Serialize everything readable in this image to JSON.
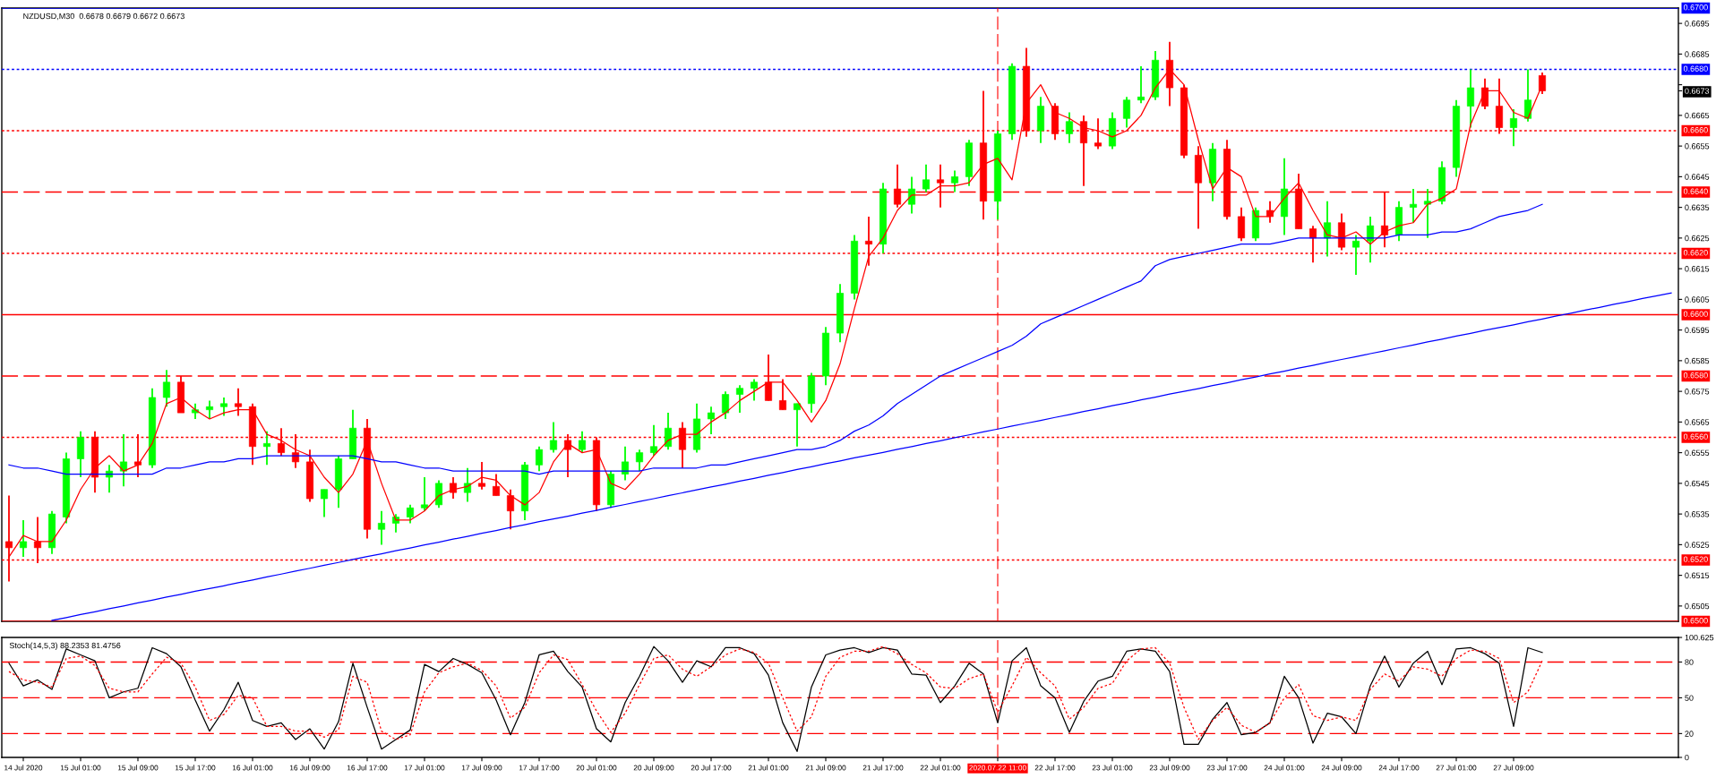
{
  "chart_data": [
    {
      "type": "candlestick",
      "title": "NZDUSD,M30  0.6678 0.6679 0.6672 0.6673",
      "categories": [
        null,
        "14 Jul 2020",
        null,
        null,
        null,
        "15 Jul 01:00",
        null,
        null,
        null,
        "15 Jul 09:00",
        null,
        null,
        null,
        "15 Jul 17:00",
        null,
        null,
        null,
        "16 Jul 01:00",
        null,
        null,
        null,
        "16 Jul 09:00",
        null,
        null,
        null,
        "16 Jul 17:00",
        null,
        null,
        null,
        "17 Jul 01:00",
        null,
        null,
        null,
        "17 Jul 09:00",
        null,
        null,
        null,
        "17 Jul 17:00",
        null,
        null,
        null,
        "20 Jul 01:00",
        null,
        null,
        null,
        "20 Jul 09:00",
        null,
        null,
        null,
        "20 Jul 17:00",
        null,
        null,
        null,
        "21 Jul 01:00",
        null,
        null,
        null,
        "21 Jul 09:00",
        null,
        null,
        null,
        "21 Jul 17:00",
        null,
        null,
        null,
        "22 Jul 01:00",
        null,
        null,
        null,
        "2020.07.22 11:00",
        null,
        null,
        null,
        "22 Jul 17:00",
        null,
        null,
        null,
        "23 Jul 01:00",
        null,
        null,
        null,
        "23 Jul 09:00",
        null,
        null,
        null,
        "23 Jul 17:00",
        null,
        null,
        null,
        "24 Jul 01:00",
        null,
        null,
        null,
        "24 Jul 09:00",
        null,
        null,
        null,
        "24 Jul 17:00",
        null,
        null,
        null,
        "27 Jul 01:00",
        null,
        null,
        null,
        "27 Jul 09:00",
        null,
        null,
        null,
        null,
        null,
        null,
        null,
        null,
        null,
        null,
        null
      ],
      "ohlc": [
        [
          0.6526,
          0.6541,
          0.6513,
          0.6524
        ],
        [
          0.6524,
          0.6533,
          0.6521,
          0.6526
        ],
        [
          0.6526,
          0.6534,
          0.6519,
          0.6524
        ],
        [
          0.6524,
          0.6536,
          0.6522,
          0.6535
        ],
        [
          0.6534,
          0.6555,
          0.6532,
          0.6553
        ],
        [
          0.6553,
          0.6562,
          0.6547,
          0.656
        ],
        [
          0.656,
          0.6562,
          0.6542,
          0.6547
        ],
        [
          0.6547,
          0.6551,
          0.6542,
          0.6549
        ],
        [
          0.6549,
          0.6561,
          0.6544,
          0.6552
        ],
        [
          0.6552,
          0.6561,
          0.6547,
          0.6551
        ],
        [
          0.6551,
          0.6576,
          0.655,
          0.6573
        ],
        [
          0.6573,
          0.6582,
          0.657,
          0.6578
        ],
        [
          0.6578,
          0.658,
          0.6568,
          0.6568
        ],
        [
          0.6568,
          0.6571,
          0.6566,
          0.6569
        ],
        [
          0.6569,
          0.6572,
          0.6566,
          0.657
        ],
        [
          0.657,
          0.6573,
          0.6567,
          0.6571
        ],
        [
          0.6571,
          0.6576,
          0.6567,
          0.657
        ],
        [
          0.657,
          0.6571,
          0.6551,
          0.6557
        ],
        [
          0.6557,
          0.6562,
          0.6551,
          0.6558
        ],
        [
          0.6558,
          0.6563,
          0.6554,
          0.6555
        ],
        [
          0.6555,
          0.6561,
          0.655,
          0.6552
        ],
        [
          0.6552,
          0.6556,
          0.6539,
          0.654
        ],
        [
          0.654,
          0.6543,
          0.6534,
          0.6543
        ],
        [
          0.6543,
          0.6554,
          0.6537,
          0.6553
        ],
        [
          0.6553,
          0.6569,
          0.6553,
          0.6563
        ],
        [
          0.6563,
          0.6566,
          0.6527,
          0.653
        ],
        [
          0.653,
          0.6536,
          0.6525,
          0.6532
        ],
        [
          0.6532,
          0.6535,
          0.6529,
          0.6534
        ],
        [
          0.6534,
          0.6538,
          0.6532,
          0.6537
        ],
        [
          0.6537,
          0.6547,
          0.6536,
          0.6538
        ],
        [
          0.6538,
          0.6546,
          0.6537,
          0.6545
        ],
        [
          0.6545,
          0.6547,
          0.654,
          0.6542
        ],
        [
          0.6542,
          0.655,
          0.6539,
          0.6545
        ],
        [
          0.6545,
          0.6552,
          0.6543,
          0.6544
        ],
        [
          0.6544,
          0.6548,
          0.6541,
          0.6541
        ],
        [
          0.6541,
          0.6543,
          0.653,
          0.6536
        ],
        [
          0.6536,
          0.6552,
          0.6533,
          0.6551
        ],
        [
          0.6551,
          0.6557,
          0.6549,
          0.6556
        ],
        [
          0.6556,
          0.6565,
          0.6555,
          0.6559
        ],
        [
          0.6559,
          0.6561,
          0.6547,
          0.6556
        ],
        [
          0.6556,
          0.6562,
          0.6555,
          0.6559
        ],
        [
          0.6559,
          0.656,
          0.6536,
          0.6538
        ],
        [
          0.6538,
          0.6549,
          0.6537,
          0.6548
        ],
        [
          0.6548,
          0.6557,
          0.6546,
          0.6552
        ],
        [
          0.6552,
          0.6556,
          0.6549,
          0.6555
        ],
        [
          0.6555,
          0.6564,
          0.6554,
          0.6557
        ],
        [
          0.6557,
          0.6568,
          0.6556,
          0.6563
        ],
        [
          0.6563,
          0.6565,
          0.655,
          0.6556
        ],
        [
          0.6556,
          0.6571,
          0.6555,
          0.6566
        ],
        [
          0.6566,
          0.657,
          0.6561,
          0.6568
        ],
        [
          0.6568,
          0.6575,
          0.6566,
          0.6574
        ],
        [
          0.6574,
          0.6577,
          0.6568,
          0.6576
        ],
        [
          0.6576,
          0.6579,
          0.6572,
          0.6578
        ],
        [
          0.6578,
          0.6587,
          0.6572,
          0.6572
        ],
        [
          0.6572,
          0.6579,
          0.6569,
          0.6569
        ],
        [
          0.6569,
          0.6571,
          0.6557,
          0.6571
        ],
        [
          0.6571,
          0.6581,
          0.6568,
          0.658
        ],
        [
          0.658,
          0.6596,
          0.6577,
          0.6594
        ],
        [
          0.6594,
          0.661,
          0.6591,
          0.6607
        ],
        [
          0.6607,
          0.6626,
          0.6605,
          0.6624
        ],
        [
          0.6624,
          0.6632,
          0.6616,
          0.6623
        ],
        [
          0.6623,
          0.6643,
          0.662,
          0.6641
        ],
        [
          0.6641,
          0.6649,
          0.6635,
          0.6636
        ],
        [
          0.6636,
          0.6645,
          0.6633,
          0.6641
        ],
        [
          0.6641,
          0.6649,
          0.664,
          0.6644
        ],
        [
          0.6644,
          0.6649,
          0.6635,
          0.6643
        ],
        [
          0.6643,
          0.6647,
          0.664,
          0.6645
        ],
        [
          0.6645,
          0.6657,
          0.6642,
          0.6656
        ],
        [
          0.6656,
          0.6673,
          0.6631,
          0.6637
        ],
        [
          0.6637,
          0.666,
          0.6631,
          0.6659
        ],
        [
          0.6659,
          0.6682,
          0.6657,
          0.6681
        ],
        [
          0.6681,
          0.6687,
          0.6658,
          0.666
        ],
        [
          0.666,
          0.6671,
          0.6656,
          0.6668
        ],
        [
          0.6668,
          0.6669,
          0.6657,
          0.6659
        ],
        [
          0.6659,
          0.6666,
          0.6656,
          0.6663
        ],
        [
          0.6663,
          0.6665,
          0.6642,
          0.6656
        ],
        [
          0.6656,
          0.6664,
          0.6654,
          0.6655
        ],
        [
          0.6655,
          0.6666,
          0.6654,
          0.6664
        ],
        [
          0.6664,
          0.6671,
          0.6661,
          0.667
        ],
        [
          0.667,
          0.6681,
          0.6669,
          0.6671
        ],
        [
          0.6671,
          0.6686,
          0.667,
          0.6683
        ],
        [
          0.6683,
          0.6689,
          0.6668,
          0.6674
        ],
        [
          0.6674,
          0.6675,
          0.6651,
          0.6652
        ],
        [
          0.6652,
          0.6655,
          0.6628,
          0.6643
        ],
        [
          0.6643,
          0.6656,
          0.6637,
          0.6654
        ],
        [
          0.6654,
          0.6657,
          0.6631,
          0.6632
        ],
        [
          0.6632,
          0.6635,
          0.6624,
          0.6625
        ],
        [
          0.6625,
          0.6635,
          0.6624,
          0.6634
        ],
        [
          0.6634,
          0.6637,
          0.663,
          0.6632
        ],
        [
          0.6632,
          0.6651,
          0.6626,
          0.6641
        ],
        [
          0.6641,
          0.6646,
          0.6628,
          0.6628
        ],
        [
          0.6628,
          0.6629,
          0.6617,
          0.6625
        ],
        [
          0.6625,
          0.6637,
          0.6619,
          0.663
        ],
        [
          0.663,
          0.6633,
          0.6621,
          0.6622
        ],
        [
          0.6622,
          0.6626,
          0.6613,
          0.6624
        ],
        [
          0.6624,
          0.6632,
          0.6617,
          0.6629
        ],
        [
          0.6629,
          0.664,
          0.6622,
          0.6626
        ],
        [
          0.6626,
          0.6637,
          0.6624,
          0.6635
        ],
        [
          0.6635,
          0.6641,
          0.663,
          0.6636
        ],
        [
          0.6636,
          0.6641,
          0.6625,
          0.6637
        ],
        [
          0.6637,
          0.665,
          0.6636,
          0.6648
        ],
        [
          0.6648,
          0.667,
          0.6645,
          0.6668
        ],
        [
          0.6668,
          0.668,
          0.6661,
          0.6674
        ],
        [
          0.6674,
          0.6677,
          0.6667,
          0.6668
        ],
        [
          0.6668,
          0.6677,
          0.6659,
          0.6661
        ],
        [
          0.6661,
          0.6667,
          0.6655,
          0.6664
        ],
        [
          0.6664,
          0.668,
          0.6663,
          0.667
        ],
        [
          0.6678,
          0.6679,
          0.6672,
          0.6673
        ],
        null,
        null,
        null,
        null,
        null,
        null,
        null,
        null,
        null
      ],
      "colors": [
        "#ff0000",
        "#00ff00",
        "#ff0000",
        "#00ff00",
        "#00ff00",
        "#00ff00",
        "#ff0000",
        "#00ff00",
        "#00ff00",
        "#ff0000",
        "#00ff00",
        "#00ff00",
        "#ff0000",
        "#00ff00",
        "#00ff00",
        "#00ff00",
        "#ff0000",
        "#ff0000",
        "#00ff00",
        "#ff0000",
        "#ff0000",
        "#ff0000",
        "#00ff00",
        "#00ff00",
        "#00ff00",
        "#ff0000",
        "#00ff00",
        "#00ff00",
        "#00ff00",
        "#00ff00",
        "#00ff00",
        "#ff0000",
        "#00ff00",
        "#ff0000",
        "#ff0000",
        "#ff0000",
        "#00ff00",
        "#00ff00",
        "#00ff00",
        "#ff0000",
        "#00ff00",
        "#ff0000",
        "#00ff00",
        "#00ff00",
        "#00ff00",
        "#00ff00",
        "#00ff00",
        "#ff0000",
        "#00ff00",
        "#00ff00",
        "#00ff00",
        "#00ff00",
        "#00ff00",
        "#ff0000",
        "#ff0000",
        "#00ff00",
        "#00ff00",
        "#00ff00",
        "#00ff00",
        "#00ff00",
        "#ff0000",
        "#00ff00",
        "#ff0000",
        "#00ff00",
        "#00ff00",
        "#ff0000",
        "#00ff00",
        "#00ff00",
        "#ff0000",
        "#00ff00",
        "#00ff00",
        "#ff0000",
        "#00ff00",
        "#ff0000",
        "#00ff00",
        "#ff0000",
        "#ff0000",
        "#00ff00",
        "#00ff00",
        "#00ff00",
        "#00ff00",
        "#ff0000",
        "#ff0000",
        "#ff0000",
        "#00ff00",
        "#ff0000",
        "#ff0000",
        "#00ff00",
        "#ff0000",
        "#00ff00",
        "#ff0000",
        "#ff0000",
        "#00ff00",
        "#ff0000",
        "#00ff00",
        "#00ff00",
        "#ff0000",
        "#00ff00",
        "#00ff00",
        "#00ff00",
        "#00ff00",
        "#00ff00",
        "#00ff00",
        "#ff0000",
        "#ff0000",
        "#00ff00",
        "#00ff00",
        "#ff0000",
        null,
        null,
        null,
        null,
        null,
        null,
        null,
        null,
        null
      ],
      "series": [
        {
          "type": "line",
          "color": "#ff0000",
          "values": [
            0.6521,
            0.6528,
            0.6526,
            0.6526,
            0.6533,
            0.6543,
            0.655,
            0.6554,
            0.6549,
            0.6551,
            0.6558,
            0.6571,
            0.6573,
            0.6569,
            0.6566,
            0.6568,
            0.6569,
            0.6569,
            0.6561,
            0.6559,
            0.6556,
            0.6554,
            0.6547,
            0.6542,
            0.6548,
            0.6559,
            0.6545,
            0.6533,
            0.6533,
            0.6536,
            0.6541,
            0.6543,
            0.6544,
            0.6547,
            0.6546,
            0.6541,
            0.6538,
            0.6542,
            0.6552,
            0.6558,
            0.6555,
            0.6556,
            0.6545,
            0.6543,
            0.6548,
            0.6554,
            0.6559,
            0.6561,
            0.6561,
            0.6565,
            0.6568,
            0.6572,
            0.6575,
            0.6578,
            0.6578,
            0.6572,
            0.6565,
            0.6572,
            0.6584,
            0.6602,
            0.6619,
            0.6625,
            0.6634,
            0.6639,
            0.6639,
            0.6642,
            0.6642,
            0.6643,
            0.6649,
            0.6651,
            0.6644,
            0.6669,
            0.6675,
            0.6666,
            0.6664,
            0.6661,
            0.666,
            0.6658,
            0.666,
            0.6665,
            0.6674,
            0.668,
            0.6675,
            0.6657,
            0.6641,
            0.6648,
            0.6645,
            0.6632,
            0.6632,
            0.6638,
            0.6643,
            0.6634,
            0.6626,
            0.6625,
            0.6627,
            0.6623,
            0.6627,
            0.6629,
            0.663,
            0.6636,
            0.6638,
            0.6641,
            0.6662,
            0.6673,
            0.6673,
            0.6666,
            0.6664,
            0.6675,
            null,
            null,
            null,
            null,
            null,
            null,
            null,
            null,
            null
          ]
        },
        {
          "type": "line",
          "color": "#0000ff",
          "values": [
            0.6551,
            0.655,
            0.655,
            0.6549,
            0.6548,
            0.6548,
            0.6548,
            0.6548,
            0.6548,
            0.6548,
            0.6548,
            0.655,
            0.655,
            0.6551,
            0.6552,
            0.6552,
            0.6553,
            0.6553,
            0.6554,
            0.6554,
            0.6554,
            0.6554,
            0.6554,
            0.6554,
            0.6554,
            0.6553,
            0.6552,
            0.6552,
            0.6551,
            0.655,
            0.655,
            0.6549,
            0.6549,
            0.6549,
            0.6549,
            0.6549,
            0.6549,
            0.6548,
            0.6549,
            0.6549,
            0.6549,
            0.6549,
            0.6549,
            0.6549,
            0.6549,
            0.655,
            0.655,
            0.655,
            0.655,
            0.6551,
            0.6551,
            0.6552,
            0.6553,
            0.6554,
            0.6555,
            0.6556,
            0.6556,
            0.6557,
            0.6559,
            0.6562,
            0.6564,
            0.6567,
            0.6571,
            0.6574,
            0.6577,
            0.658,
            0.6582,
            0.6584,
            0.6586,
            0.6588,
            0.659,
            0.6593,
            0.6597,
            0.6599,
            0.6601,
            0.6603,
            0.6605,
            0.6607,
            0.6609,
            0.6611,
            0.6616,
            0.6618,
            0.6619,
            0.662,
            0.6621,
            0.6622,
            0.6623,
            0.6623,
            0.6623,
            0.6624,
            0.6625,
            0.6625,
            0.6625,
            0.6625,
            0.6625,
            0.6625,
            0.6625,
            0.6626,
            0.6626,
            0.6626,
            0.6627,
            0.6627,
            0.6628,
            0.663,
            0.6632,
            0.6633,
            0.6634,
            0.6636,
            null,
            null,
            null,
            null,
            null,
            null,
            null,
            null,
            null
          ]
        },
        {
          "type": "line",
          "color": "#0000ff",
          "values": [
            null,
            null,
            null,
            0.65003,
            0.65012,
            0.65022,
            0.65031,
            0.65041,
            0.6505,
            0.6506,
            0.65069,
            0.65079,
            0.65088,
            0.65098,
            0.65107,
            0.65116,
            0.65126,
            0.65135,
            0.65145,
            0.65154,
            0.65164,
            0.65173,
            0.65183,
            0.65192,
            0.65202,
            0.65211,
            0.6522,
            0.6523,
            0.65239,
            0.65249,
            0.65258,
            0.65268,
            0.65277,
            0.65287,
            0.65296,
            0.65306,
            0.65315,
            0.65325,
            0.65334,
            0.65343,
            0.65353,
            0.65362,
            0.65372,
            0.65381,
            0.65391,
            0.654,
            0.6541,
            0.65419,
            0.65429,
            0.65438,
            0.65447,
            0.65457,
            0.65466,
            0.65476,
            0.65485,
            0.65495,
            0.65504,
            0.65514,
            0.65523,
            0.65533,
            0.65542,
            0.65551,
            0.65561,
            0.6557,
            0.6558,
            0.65589,
            0.65599,
            0.65608,
            0.65618,
            0.65627,
            0.65637,
            0.65646,
            0.65655,
            0.65665,
            0.65674,
            0.65684,
            0.65693,
            0.65703,
            0.65712,
            0.65722,
            0.65731,
            0.65741,
            0.6575,
            0.65759,
            0.65769,
            0.65778,
            0.65788,
            0.65797,
            0.65807,
            0.65816,
            0.65826,
            0.65835,
            0.65845,
            0.65854,
            0.65863,
            0.65873,
            0.65882,
            0.65892,
            0.65901,
            0.65911,
            0.6592,
            0.6593,
            0.65939,
            0.65949,
            0.65958,
            0.65967,
            0.65977,
            0.65986,
            0.65996,
            0.66005,
            0.66015,
            0.66024,
            0.66034,
            0.66043,
            0.66053,
            0.66062,
            0.66071
          ]
        }
      ],
      "ylim": [
        0.65,
        0.67
      ],
      "yticks": [
        0.6505,
        0.6515,
        0.6525,
        0.6535,
        0.6545,
        0.6555,
        0.6565,
        0.6575,
        0.6585,
        0.6595,
        0.6605,
        0.6615,
        0.6625,
        0.6635,
        0.6645,
        0.6655,
        0.6665,
        0.6673,
        {
          "value": 0.6675,
          "label": null
        },
        0.6685,
        0.6695
      ],
      "ref_lines": [
        {
          "axis": "y",
          "value": 0.67,
          "label": "0.6700",
          "color": "#0000ff",
          "line_style": "solid"
        },
        {
          "axis": "y",
          "value": 0.668,
          "label": "0.6680",
          "color": "#0000ff",
          "line_style": "dotted"
        },
        {
          "axis": "y",
          "value": 0.666,
          "label": "0.6660",
          "color": "#ff0000",
          "line_style": "dotted"
        },
        {
          "axis": "y",
          "value": 0.664,
          "label": "0.6640",
          "color": "#ff0000",
          "line_style": "dashed"
        },
        {
          "axis": "y",
          "value": 0.662,
          "label": "0.6620",
          "color": "#ff0000",
          "line_style": "dotted"
        },
        {
          "axis": "y",
          "value": 0.66,
          "label": "0.6600",
          "color": "#ff0000",
          "line_style": "solid"
        },
        {
          "axis": "y",
          "value": 0.658,
          "label": "0.6580",
          "color": "#ff0000",
          "line_style": "dashed"
        },
        {
          "axis": "y",
          "value": 0.656,
          "label": "0.6560",
          "color": "#ff0000",
          "line_style": "dotted"
        },
        {
          "axis": "y",
          "value": 0.652,
          "label": "0.6520",
          "color": "#ff0000",
          "line_style": "dotted"
        },
        {
          "axis": "y",
          "value": 0.65,
          "label": "0.6500",
          "color": "#ff0000",
          "line_style": "solid"
        },
        {
          "axis": "x",
          "value": "2020.07.22 11:00",
          "color": "#ff0000",
          "line_style": "dashed"
        }
      ],
      "tick_labels": "y"
    },
    {
      "type": "line",
      "title": "Stoch(14,5,3) 88.2353 81.4756",
      "categories": [
        null,
        "14 Jul 2020",
        null,
        null,
        null,
        "15 Jul 01:00",
        null,
        null,
        null,
        "15 Jul 09:00",
        null,
        null,
        null,
        "15 Jul 17:00",
        null,
        null,
        null,
        "16 Jul 01:00",
        null,
        null,
        null,
        "16 Jul 09:00",
        null,
        null,
        null,
        "16 Jul 17:00",
        null,
        null,
        null,
        "17 Jul 01:00",
        null,
        null,
        null,
        "17 Jul 09:00",
        null,
        null,
        null,
        "17 Jul 17:00",
        null,
        null,
        null,
        "20 Jul 01:00",
        null,
        null,
        null,
        "20 Jul 09:00",
        null,
        null,
        null,
        "20 Jul 17:00",
        null,
        null,
        null,
        "21 Jul 01:00",
        null,
        null,
        null,
        "21 Jul 09:00",
        null,
        null,
        null,
        "21 Jul 17:00",
        null,
        null,
        null,
        "22 Jul 01:00",
        null,
        null,
        null,
        "2020.07.22 11:00",
        null,
        null,
        null,
        "22 Jul 17:00",
        null,
        null,
        null,
        "23 Jul 01:00",
        null,
        null,
        null,
        "23 Jul 09:00",
        null,
        null,
        null,
        "23 Jul 17:00",
        null,
        null,
        null,
        "24 Jul 01:00",
        null,
        null,
        null,
        "24 Jul 09:00",
        null,
        null,
        null,
        "24 Jul 17:00",
        null,
        null,
        null,
        "27 Jul 01:00",
        null,
        null,
        null,
        "27 Jul 09:00",
        null,
        null,
        null,
        null,
        null,
        null,
        null,
        null,
        null,
        null,
        null
      ],
      "series": [
        {
          "color": "#000000",
          "values": [
            79,
            60,
            65,
            57,
            91,
            86,
            81,
            50,
            55,
            58,
            92,
            87,
            76,
            48,
            22,
            40,
            63,
            31,
            26,
            29,
            15,
            24,
            7,
            30,
            79,
            42,
            7,
            15,
            23,
            78,
            72,
            83,
            78,
            71,
            48,
            19,
            46,
            86,
            89,
            72,
            59,
            24,
            13,
            46,
            68,
            93,
            81,
            63,
            81,
            76,
            92,
            92,
            87,
            69,
            29,
            5,
            59,
            86,
            90,
            92,
            88,
            92,
            90,
            70,
            69,
            46,
            60,
            79,
            70,
            29,
            81,
            92,
            60,
            50,
            21,
            47,
            64,
            68,
            89,
            91,
            89,
            72,
            11,
            11,
            32,
            46,
            19,
            21,
            29,
            68,
            50,
            12,
            37,
            34,
            20,
            60,
            85,
            59,
            79,
            89,
            61,
            91,
            92,
            87,
            79,
            26,
            92,
            88,
            null,
            null,
            null,
            null,
            null,
            null,
            null,
            null,
            null
          ]
        },
        {
          "color": "#ff0000",
          "line_style": "dotted",
          "values": [
            72,
            65,
            63,
            59,
            83,
            85,
            77,
            58,
            55,
            55,
            70,
            84,
            79,
            59,
            31,
            36,
            52,
            50,
            26,
            26,
            22,
            22,
            17,
            23,
            68,
            63,
            22,
            15,
            19,
            55,
            71,
            76,
            79,
            73,
            60,
            33,
            42,
            71,
            86,
            82,
            61,
            39,
            21,
            37,
            61,
            83,
            86,
            74,
            68,
            76,
            86,
            91,
            88,
            79,
            50,
            22,
            34,
            68,
            84,
            89,
            89,
            93,
            87,
            78,
            71,
            59,
            58,
            66,
            70,
            38,
            60,
            84,
            71,
            60,
            32,
            42,
            58,
            62,
            81,
            91,
            92,
            79,
            42,
            15,
            31,
            42,
            27,
            21,
            29,
            50,
            61,
            35,
            31,
            34,
            31,
            57,
            70,
            64,
            76,
            74,
            68,
            83,
            90,
            89,
            83,
            46,
            55,
            81,
            null,
            null,
            null,
            null,
            null,
            null,
            null,
            null,
            null
          ]
        }
      ],
      "ylim": [
        0,
        100.625
      ],
      "yticks": [
        {
          "value": 100.625,
          "label": "100.625"
        },
        80,
        50,
        20,
        0
      ],
      "ref_lines": [
        {
          "axis": "y",
          "value": 80,
          "color": "#ff0000",
          "line_style": "dashed"
        },
        {
          "axis": "y",
          "value": 50,
          "color": "#ff0000",
          "line_style": "dashed"
        },
        {
          "axis": "y",
          "value": 20,
          "color": "#ff0000",
          "line_style": "dashed"
        },
        {
          "axis": "x",
          "value": "2020.07.22 11:00",
          "color": "#ff0000",
          "line_style": "dashed"
        }
      ]
    }
  ]
}
